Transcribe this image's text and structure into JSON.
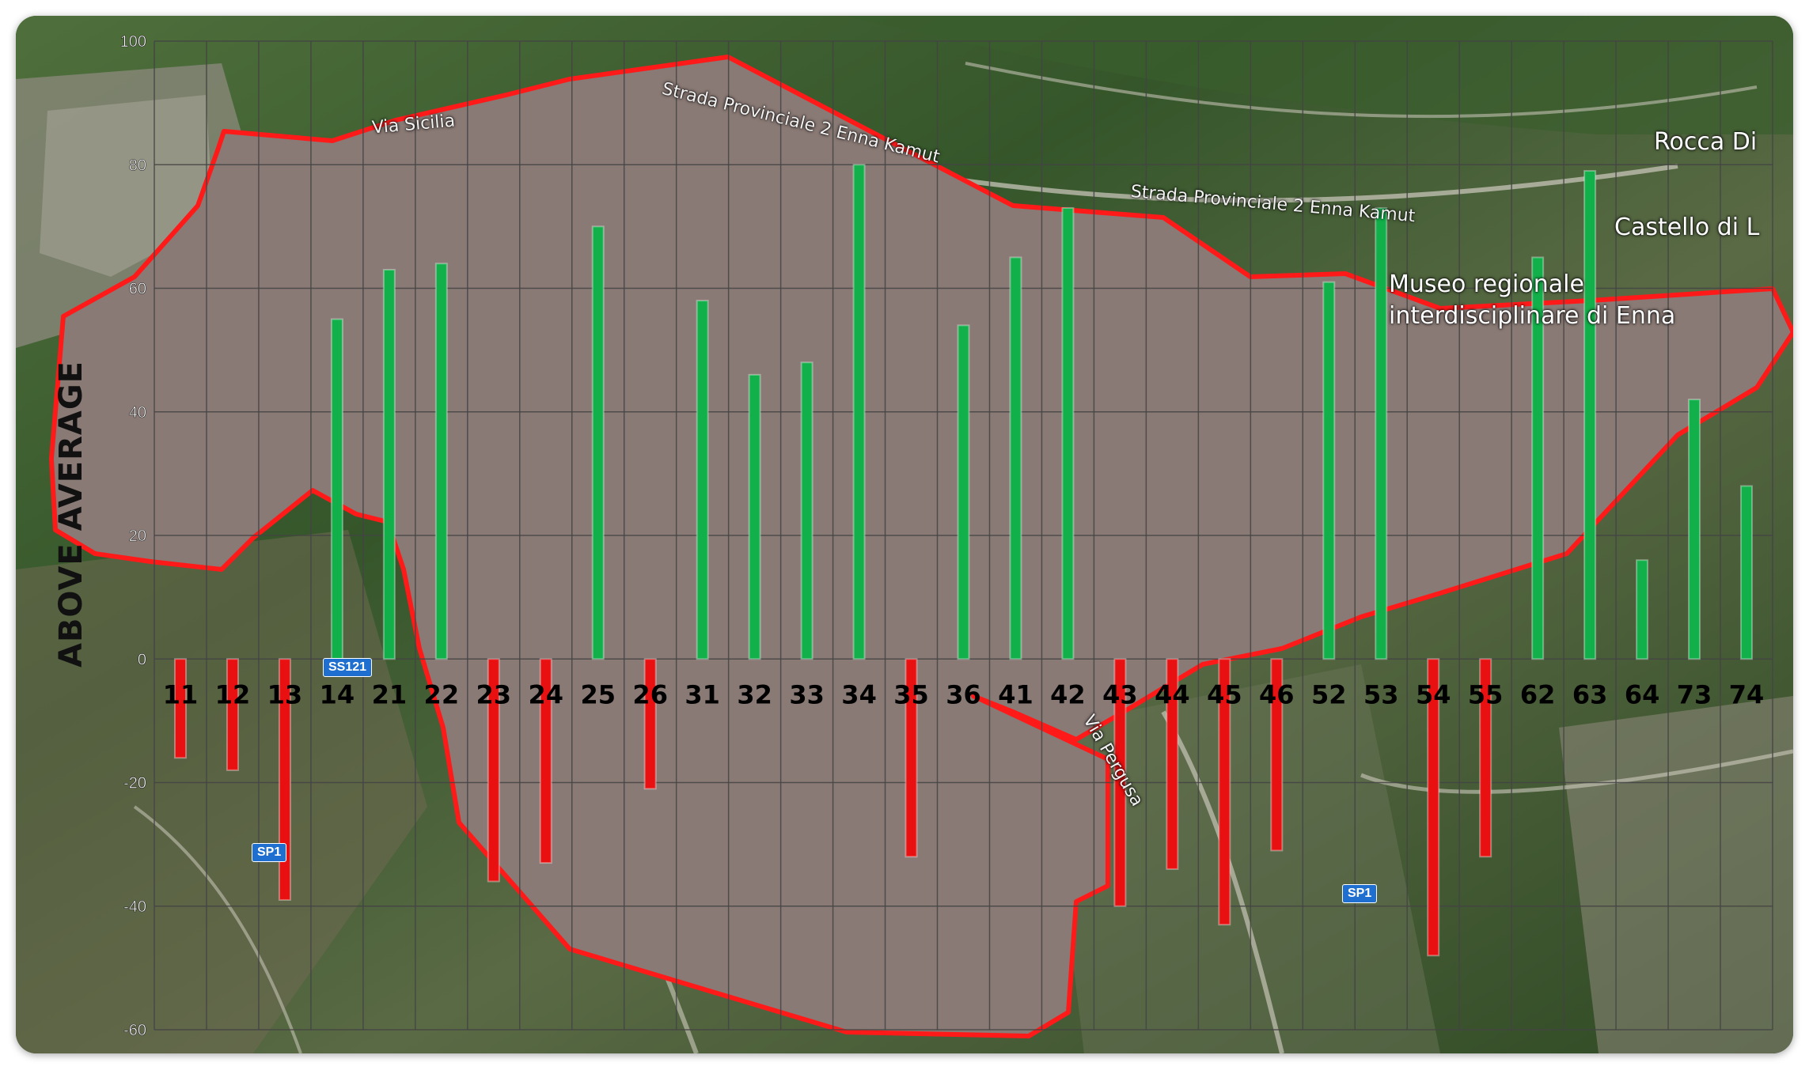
{
  "chart_data": {
    "type": "bar",
    "ylabel": "ABOVE AVERAGE",
    "xlabel": "",
    "title": "",
    "ylim": [
      -60,
      100
    ],
    "yticks": [
      -60,
      -40,
      -20,
      0,
      20,
      40,
      60,
      80,
      100
    ],
    "grid": true,
    "legend": "none",
    "categories": [
      "11",
      "12",
      "13",
      "14",
      "21",
      "22",
      "23",
      "24",
      "25",
      "26",
      "31",
      "32",
      "33",
      "34",
      "35",
      "36",
      "41",
      "42",
      "43",
      "44",
      "45",
      "46",
      "52",
      "53",
      "54",
      "55",
      "62",
      "63",
      "64",
      "73",
      "74"
    ],
    "values": [
      -16,
      -18,
      -39,
      55,
      63,
      64,
      -36,
      -33,
      70,
      -21,
      58,
      46,
      48,
      80,
      -32,
      54,
      65,
      73,
      -40,
      -34,
      -43,
      -31,
      61,
      73,
      -48,
      -32,
      65,
      79,
      16,
      42,
      28
    ],
    "colors": {
      "positive": "#12b04a",
      "negative": "#e81010"
    }
  },
  "map_labels": {
    "road_top_left": "Via Sicilia",
    "road_top": "Strada Provinciale 2 Enna Kamut",
    "road_right": "Strada Provinciale 2 Enna Kamut",
    "place_rocca": "Rocca Di",
    "place_castello": "Castello di L",
    "place_museo_1": "Museo regionale",
    "place_museo_2": "interdisciplinare di Enna",
    "road_middle": "Via Pergusa",
    "shield_1": "SS121",
    "shield_2": "SP1",
    "shield_3": "SP1"
  },
  "colors": {
    "region_fill": "#8a7a75",
    "region_outline": "#ff1a1a",
    "grid": "#444444"
  }
}
